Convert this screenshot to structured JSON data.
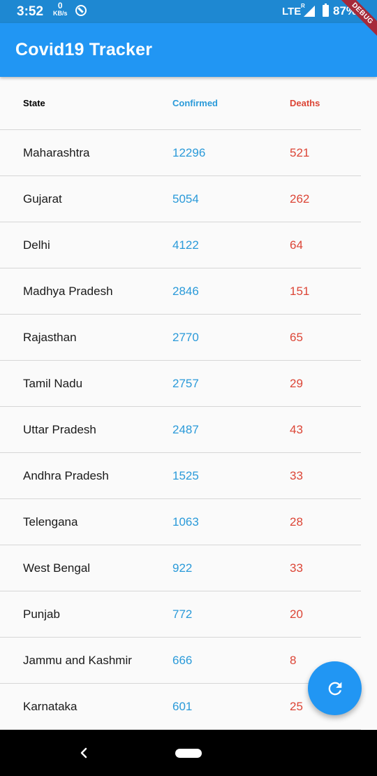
{
  "status_bar": {
    "time": "3:52",
    "kbs_value": "0",
    "kbs_unit": "KB/s",
    "network": "LTE",
    "roaming": "R",
    "battery": "87%"
  },
  "app_bar": {
    "title": "Covid19 Tracker",
    "debug_banner": "DEBUG"
  },
  "table": {
    "headers": {
      "state": "State",
      "confirmed": "Confirmed",
      "deaths": "Deaths"
    },
    "rows": [
      {
        "state": "Maharashtra",
        "confirmed": "12296",
        "deaths": "521"
      },
      {
        "state": "Gujarat",
        "confirmed": "5054",
        "deaths": "262"
      },
      {
        "state": "Delhi",
        "confirmed": "4122",
        "deaths": "64"
      },
      {
        "state": "Madhya Pradesh",
        "confirmed": "2846",
        "deaths": "151"
      },
      {
        "state": "Rajasthan",
        "confirmed": "2770",
        "deaths": "65"
      },
      {
        "state": "Tamil Nadu",
        "confirmed": "2757",
        "deaths": "29"
      },
      {
        "state": "Uttar Pradesh",
        "confirmed": "2487",
        "deaths": "43"
      },
      {
        "state": "Andhra Pradesh",
        "confirmed": "1525",
        "deaths": "33"
      },
      {
        "state": "Telengana",
        "confirmed": "1063",
        "deaths": "28"
      },
      {
        "state": "West Bengal",
        "confirmed": "922",
        "deaths": "33"
      },
      {
        "state": "Punjab",
        "confirmed": "772",
        "deaths": "20"
      },
      {
        "state": "Jammu and Kashmir",
        "confirmed": "666",
        "deaths": "8"
      },
      {
        "state": "Karnataka",
        "confirmed": "601",
        "deaths": "25"
      }
    ]
  },
  "fab": {
    "icon": "refresh-icon"
  },
  "colors": {
    "primary": "#2196f3",
    "confirmed": "#2a9ad9",
    "deaths": "#dc4536"
  }
}
